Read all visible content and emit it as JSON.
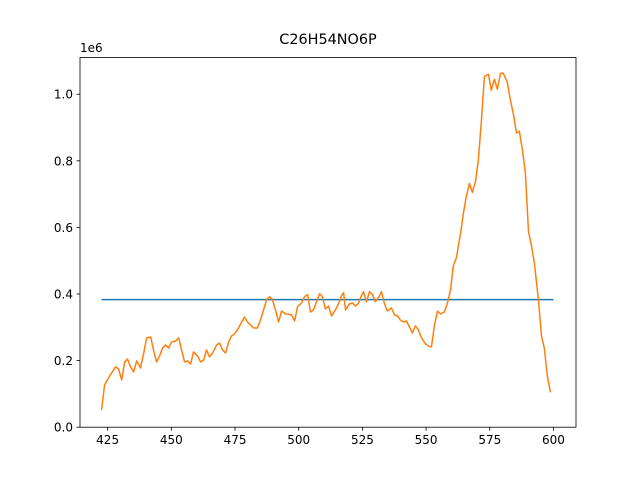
{
  "chart_data": {
    "type": "line",
    "title": "C26H54NO6P",
    "y_offset_label": "1e6",
    "xlim": [
      414.15,
      608.85
    ],
    "ylim": [
      0,
      1.11
    ],
    "xticks": [
      425,
      450,
      475,
      500,
      525,
      550,
      575,
      600
    ],
    "yticks": [
      {
        "value": 0,
        "label": "0.0"
      },
      0.2,
      0.4,
      0.6,
      0.8,
      {
        "value": 1,
        "label": "1.0"
      }
    ],
    "grid": false,
    "series": [
      {
        "color": "#1f77b4",
        "x": [
          422.6,
          600
        ],
        "values": [
          0.383,
          0.383
        ]
      },
      {
        "color": "#ff7f0e",
        "x": [
          422.6,
          423.8,
          425.8,
          428.1,
          429.3,
          430.5,
          431.7,
          432.8,
          434.0,
          435.2,
          436.4,
          437.9,
          439.1,
          440.3,
          441.9,
          443.0,
          444.2,
          445.4,
          446.6,
          447.8,
          448.9,
          450.1,
          451.7,
          452.9,
          454.0,
          455.2,
          456.4,
          457.6,
          458.7,
          460.3,
          461.5,
          462.7,
          463.8,
          465.0,
          466.2,
          467.8,
          468.9,
          470.1,
          471.3,
          472.5,
          473.6,
          474.8,
          476.4,
          477.6,
          478.7,
          479.9,
          481.1,
          482.3,
          483.8,
          485.0,
          486.2,
          487.4,
          488.6,
          489.7,
          490.9,
          492.1,
          493.3,
          494.8,
          496.0,
          497.2,
          498.4,
          499.5,
          501.1,
          502.3,
          503.5,
          504.6,
          505.8,
          507.0,
          508.2,
          509.3,
          510.5,
          511.7,
          512.9,
          514.4,
          515.6,
          516.8,
          517.6,
          518.4,
          519.9,
          521.1,
          522.3,
          523.5,
          524.6,
          525.4,
          526.6,
          527.8,
          529.0,
          530.1,
          531.3,
          532.5,
          533.7,
          534.8,
          536.4,
          537.6,
          538.8,
          539.9,
          541.1,
          542.3,
          543.5,
          544.6,
          545.8,
          547.0,
          548.2,
          549.8,
          550.9,
          552.1,
          553.3,
          554.5,
          555.6,
          557.2,
          558.4,
          559.6,
          560.7,
          561.9,
          563.5,
          564.7,
          565.8,
          567.0,
          568.2,
          569.4,
          570.5,
          571.7,
          572.9,
          574.5,
          575.6,
          576.8,
          578.0,
          579.2,
          580.3,
          581.9,
          583.1,
          584.3,
          585.5,
          586.6,
          587.8,
          589.0,
          590.2,
          591.3,
          592.5,
          594.1,
          595.3,
          596.4,
          597.6,
          598.8
        ],
        "values": [
          0.051,
          0.127,
          0.154,
          0.181,
          0.175,
          0.142,
          0.196,
          0.205,
          0.181,
          0.166,
          0.199,
          0.178,
          0.22,
          0.268,
          0.271,
          0.232,
          0.196,
          0.214,
          0.238,
          0.247,
          0.238,
          0.256,
          0.259,
          0.268,
          0.232,
          0.196,
          0.199,
          0.19,
          0.226,
          0.214,
          0.196,
          0.202,
          0.232,
          0.211,
          0.223,
          0.247,
          0.253,
          0.232,
          0.223,
          0.256,
          0.274,
          0.28,
          0.298,
          0.316,
          0.331,
          0.316,
          0.307,
          0.298,
          0.298,
          0.322,
          0.352,
          0.383,
          0.392,
          0.383,
          0.352,
          0.316,
          0.349,
          0.34,
          0.34,
          0.337,
          0.319,
          0.361,
          0.373,
          0.392,
          0.398,
          0.346,
          0.352,
          0.377,
          0.401,
          0.392,
          0.355,
          0.364,
          0.334,
          0.352,
          0.37,
          0.395,
          0.404,
          0.352,
          0.37,
          0.373,
          0.364,
          0.373,
          0.395,
          0.407,
          0.377,
          0.407,
          0.398,
          0.377,
          0.389,
          0.407,
          0.37,
          0.349,
          0.358,
          0.337,
          0.334,
          0.322,
          0.316,
          0.319,
          0.301,
          0.283,
          0.304,
          0.292,
          0.268,
          0.25,
          0.244,
          0.241,
          0.307,
          0.349,
          0.34,
          0.346,
          0.373,
          0.413,
          0.485,
          0.509,
          0.581,
          0.645,
          0.693,
          0.732,
          0.705,
          0.738,
          0.801,
          0.919,
          1.054,
          1.06,
          1.012,
          1.045,
          1.015,
          1.063,
          1.063,
          1.036,
          0.982,
          0.94,
          0.883,
          0.889,
          0.834,
          0.762,
          0.587,
          0.548,
          0.494,
          0.383,
          0.274,
          0.238,
          0.154,
          0.105
        ]
      }
    ]
  }
}
